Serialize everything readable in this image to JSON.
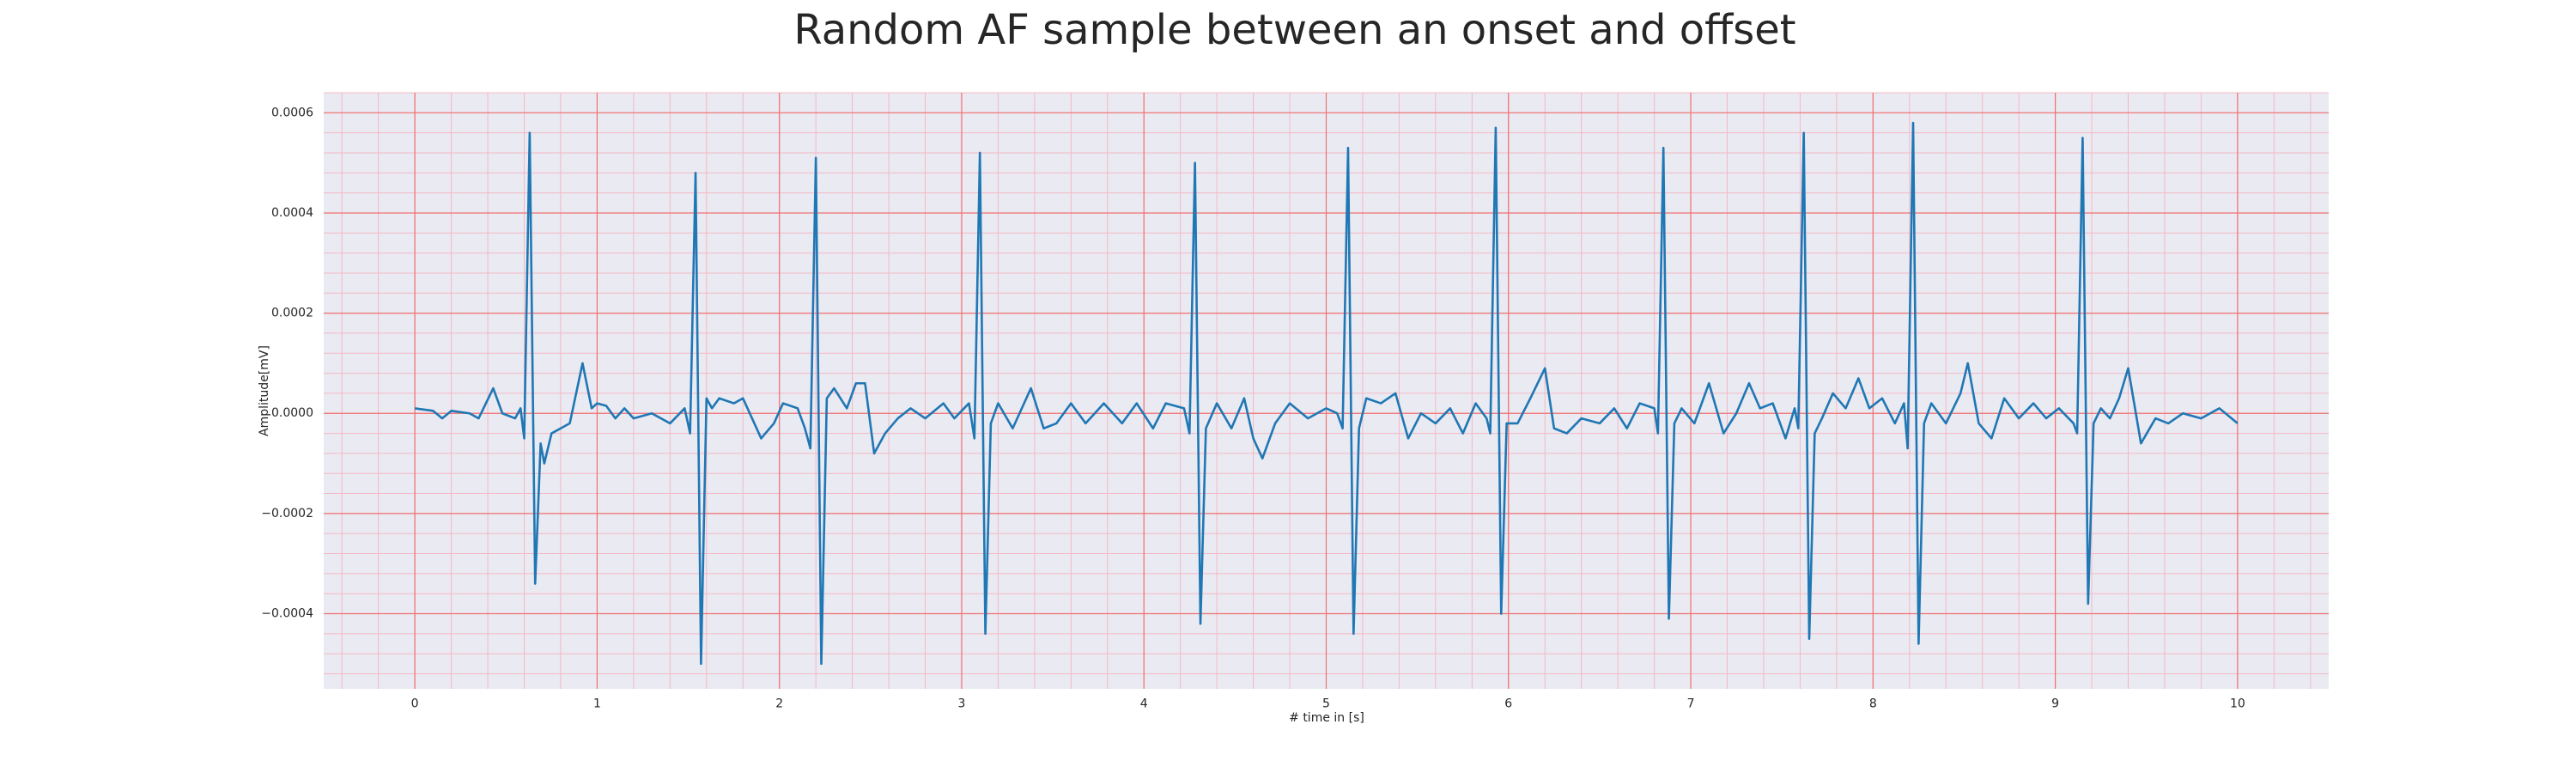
{
  "chart_data": {
    "type": "line",
    "title": "Random AF sample between an onset and offset",
    "x_label": "# time in [s]",
    "y_label": "Amplitude[mV]",
    "color": "#1f77b4",
    "grid": true,
    "minor_grid": true,
    "xlim": [
      -0.5,
      10.5
    ],
    "ylim": [
      -0.00055,
      0.00064
    ],
    "xticks": [
      0,
      1,
      2,
      3,
      4,
      5,
      6,
      7,
      8,
      9,
      10
    ],
    "yticks": [
      {
        "value": -0.0004,
        "label": "−0.0004"
      },
      {
        "value": -0.0002,
        "label": "−0.0002"
      },
      {
        "value": 0,
        "label": "0.0000"
      },
      0.0002,
      0.0004,
      0.0006
    ],
    "x": [
      0,
      0.1,
      0.15,
      0.2,
      0.3,
      0.35,
      0.43,
      0.48,
      0.55,
      0.58,
      0.6,
      0.63,
      0.66,
      0.69,
      0.71,
      0.75,
      0.8,
      0.85,
      0.92,
      0.97,
      1.0,
      1.05,
      1.1,
      1.15,
      1.2,
      1.3,
      1.4,
      1.48,
      1.51,
      1.54,
      1.57,
      1.6,
      1.63,
      1.67,
      1.75,
      1.8,
      1.85,
      1.9,
      1.97,
      2.02,
      2.1,
      2.14,
      2.17,
      2.2,
      2.23,
      2.26,
      2.3,
      2.37,
      2.42,
      2.47,
      2.52,
      2.58,
      2.65,
      2.72,
      2.8,
      2.9,
      2.96,
      3.04,
      3.07,
      3.1,
      3.13,
      3.16,
      3.2,
      3.28,
      3.38,
      3.45,
      3.52,
      3.6,
      3.68,
      3.78,
      3.88,
      3.96,
      4.05,
      4.12,
      4.22,
      4.25,
      4.28,
      4.31,
      4.34,
      4.4,
      4.48,
      4.55,
      4.6,
      4.65,
      4.72,
      4.8,
      4.9,
      5.0,
      5.06,
      5.09,
      5.12,
      5.15,
      5.18,
      5.22,
      5.3,
      5.38,
      5.45,
      5.52,
      5.6,
      5.68,
      5.75,
      5.82,
      5.88,
      5.9,
      5.93,
      5.96,
      5.99,
      6.05,
      6.12,
      6.2,
      6.25,
      6.32,
      6.4,
      6.5,
      6.58,
      6.65,
      6.72,
      6.8,
      6.82,
      6.85,
      6.88,
      6.91,
      6.95,
      7.02,
      7.1,
      7.18,
      7.25,
      7.32,
      7.38,
      7.45,
      7.52,
      7.57,
      7.59,
      7.62,
      7.65,
      7.68,
      7.72,
      7.78,
      7.85,
      7.92,
      7.98,
      8.05,
      8.12,
      8.17,
      8.19,
      8.22,
      8.25,
      8.28,
      8.32,
      8.4,
      8.48,
      8.52,
      8.58,
      8.65,
      8.72,
      8.8,
      8.88,
      8.95,
      9.02,
      9.1,
      9.12,
      9.15,
      9.18,
      9.21,
      9.25,
      9.3,
      9.35,
      9.4,
      9.47,
      9.55,
      9.62,
      9.7,
      9.8,
      9.9,
      10.0
    ],
    "values": [
      1e-05,
      5e-06,
      -1e-05,
      5e-06,
      0,
      -1e-05,
      5e-05,
      0,
      -1e-05,
      1e-05,
      -5e-05,
      0.00056,
      -0.00034,
      -6e-05,
      -0.0001,
      -4e-05,
      -3e-05,
      -2e-05,
      0.0001,
      1e-05,
      2e-05,
      1.5e-05,
      -1e-05,
      1e-05,
      -1e-05,
      0,
      -2e-05,
      1e-05,
      -4e-05,
      0.00048,
      -0.0005,
      3e-05,
      1e-05,
      3e-05,
      2e-05,
      3e-05,
      -1e-05,
      -5e-05,
      -2e-05,
      2e-05,
      1e-05,
      -3e-05,
      -7e-05,
      0.00051,
      -0.0005,
      3e-05,
      5e-05,
      1e-05,
      6e-05,
      6e-05,
      -8e-05,
      -4e-05,
      -1e-05,
      1e-05,
      -1e-05,
      2e-05,
      -1e-05,
      2e-05,
      -5e-05,
      0.00052,
      -0.00044,
      -2e-05,
      2e-05,
      -3e-05,
      5e-05,
      -3e-05,
      -2e-05,
      2e-05,
      -2e-05,
      2e-05,
      -2e-05,
      2e-05,
      -3e-05,
      2e-05,
      1e-05,
      -4e-05,
      0.0005,
      -0.00042,
      -3e-05,
      2e-05,
      -3e-05,
      3e-05,
      -5e-05,
      -9e-05,
      -2e-05,
      2e-05,
      -1e-05,
      1e-05,
      0,
      -3e-05,
      0.00053,
      -0.00044,
      -3e-05,
      3e-05,
      2e-05,
      4e-05,
      -5e-05,
      0,
      -2e-05,
      1e-05,
      -4e-05,
      2e-05,
      -1e-05,
      -4e-05,
      0.00057,
      -0.0004,
      -2e-05,
      -2e-05,
      3e-05,
      9e-05,
      -3e-05,
      -4e-05,
      -1e-05,
      -2e-05,
      1e-05,
      -3e-05,
      2e-05,
      1e-05,
      -4e-05,
      0.00053,
      -0.00041,
      -2e-05,
      1e-05,
      -2e-05,
      6e-05,
      -4e-05,
      0,
      6e-05,
      1e-05,
      2e-05,
      -5e-05,
      1e-05,
      -3e-05,
      0.00056,
      -0.00045,
      -4e-05,
      -1e-05,
      4e-05,
      1e-05,
      7e-05,
      1e-05,
      3e-05,
      -2e-05,
      2e-05,
      -7e-05,
      0.00058,
      -0.00046,
      -2e-05,
      2e-05,
      -2e-05,
      4e-05,
      0.0001,
      -2e-05,
      -5e-05,
      3e-05,
      -1e-05,
      2e-05,
      -1e-05,
      1e-05,
      -2e-05,
      -4e-05,
      0.00055,
      -0.00038,
      -2e-05,
      1e-05,
      -1e-05,
      3e-05,
      9e-05,
      -6e-05,
      -1e-05,
      -2e-05,
      0,
      -1e-05,
      1e-05,
      -2e-05
    ]
  }
}
